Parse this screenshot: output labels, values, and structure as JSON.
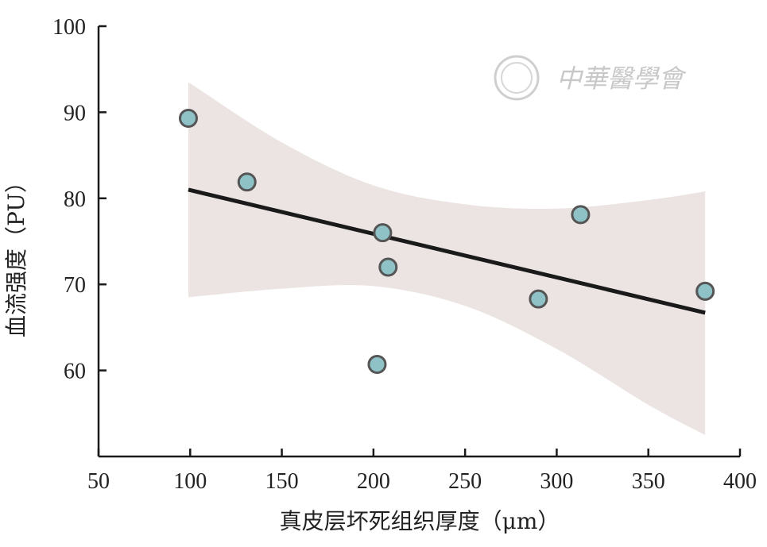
{
  "chart_data": {
    "type": "scatter",
    "xlabel": "真皮层坏死组织厚度（μm）",
    "ylabel": "血流强度（PU）",
    "xlim": [
      50,
      400
    ],
    "ylim": [
      50,
      100
    ],
    "x_ticks": [
      "50",
      "100",
      "150",
      "200",
      "250",
      "300",
      "350",
      "400"
    ],
    "y_ticks": [
      "100",
      "90",
      "80",
      "70",
      "60"
    ],
    "points": [
      {
        "x": 99,
        "y": 89.3
      },
      {
        "x": 131,
        "y": 81.9
      },
      {
        "x": 205,
        "y": 76.0
      },
      {
        "x": 208,
        "y": 72.0
      },
      {
        "x": 202,
        "y": 60.7
      },
      {
        "x": 290,
        "y": 68.3
      },
      {
        "x": 313,
        "y": 78.1
      },
      {
        "x": 381,
        "y": 69.2
      }
    ],
    "regression": {
      "x1": 99,
      "y1": 81.0,
      "x2": 381,
      "y2": 66.7
    },
    "confidence_band": {
      "x": [
        99,
        150,
        200,
        250,
        300,
        350,
        381
      ],
      "upper": [
        93.5,
        86.5,
        81.5,
        79.3,
        78.8,
        79.8,
        80.8
      ],
      "lower": [
        68.5,
        69.5,
        69.8,
        67.5,
        62.5,
        56.0,
        52.5
      ]
    },
    "grid": false,
    "colors": {
      "point_fill": "#8ec2c7",
      "point_edge": "#555555",
      "line": "#1a1a1a",
      "band": "#ebe4e2",
      "axis": "#1a1a1a"
    }
  },
  "watermark": {
    "text": "中華醫學會",
    "icon": "seal-icon"
  }
}
